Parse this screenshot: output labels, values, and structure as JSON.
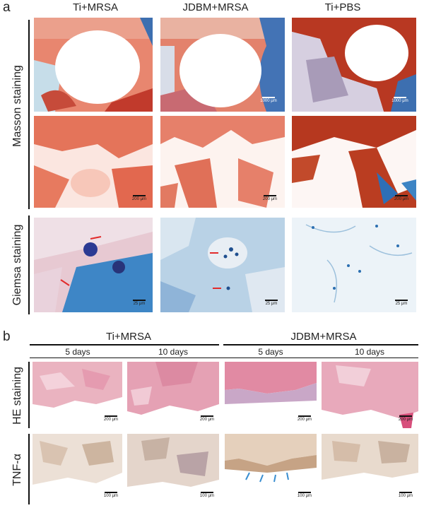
{
  "panel_a": {
    "letter": "a",
    "columns": [
      "Ti+MRSA",
      "JDBM+MRSA",
      "Ti+PBS"
    ],
    "rows": [
      "Masson staining",
      "Giemsa staining"
    ],
    "scale_labels": {
      "masson_low": "1000 μm",
      "masson_high": "200 μm",
      "giemsa": "25 μm"
    }
  },
  "panel_b": {
    "letter": "b",
    "groups": [
      "Ti+MRSA",
      "JDBM+MRSA"
    ],
    "timepoints": [
      "5 days",
      "10 days",
      "5 days",
      "10 days"
    ],
    "rows": [
      "HE staining",
      "TNF-α"
    ],
    "scale_labels": {
      "he": "200 μm",
      "tnf": "100 μm"
    }
  },
  "colors": {
    "masson_red": "#d9412c",
    "masson_blue": "#2f6fb5",
    "giemsa_blue": "#3d8bc9",
    "he_pink": "#e9a7b8",
    "tnf_brown": "#c8a98a"
  }
}
